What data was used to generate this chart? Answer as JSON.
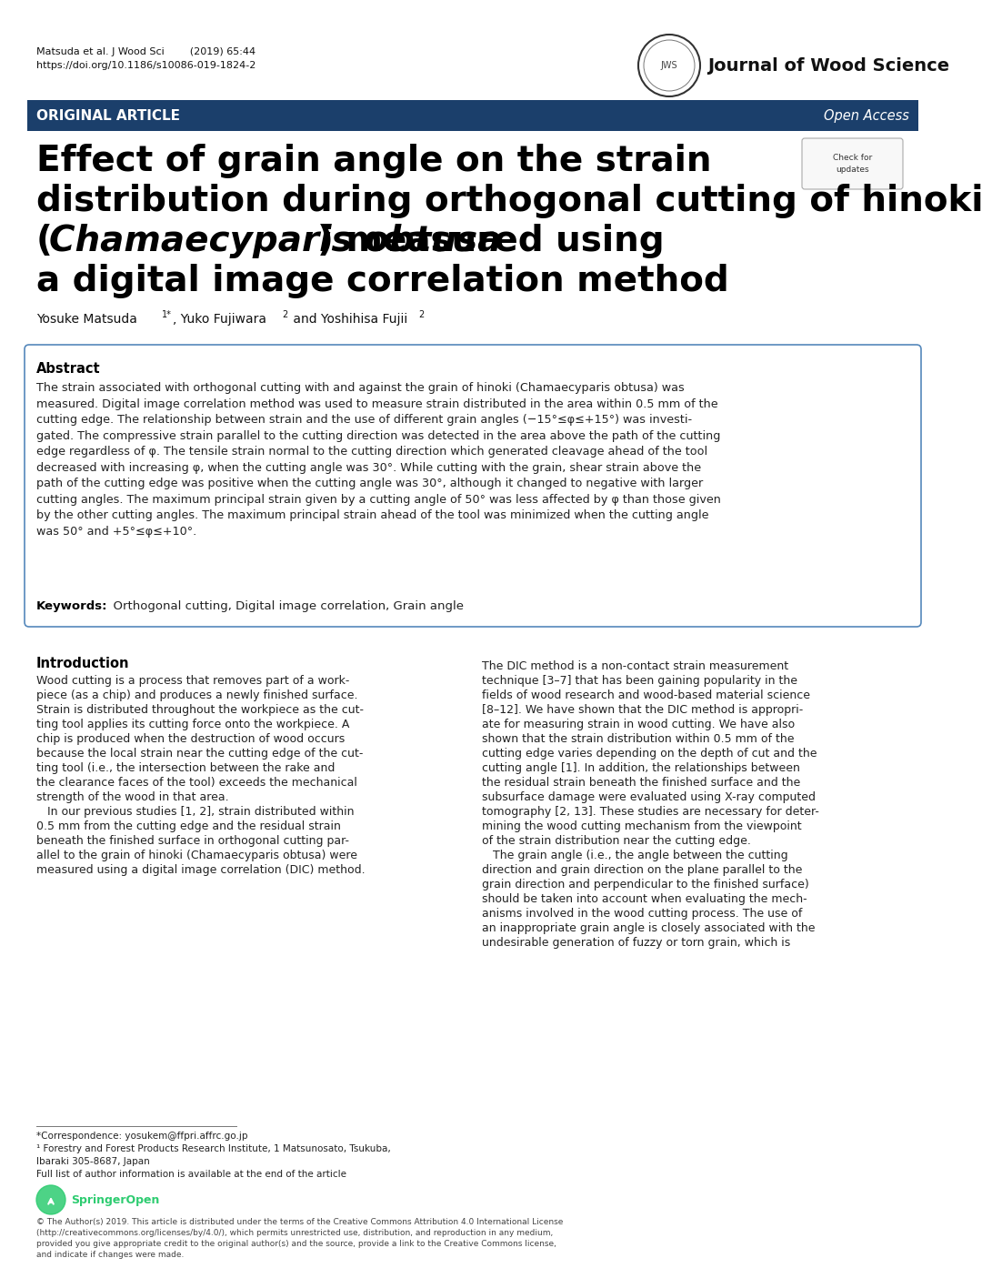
{
  "header_citation": "Matsuda et al. J Wood Sci        (2019) 65:44",
  "header_doi": "https://doi.org/10.1186/s10086-019-1824-2",
  "journal_name": "Journal of Wood Science",
  "banner_text": "ORIGINAL ARTICLE",
  "banner_right_text": "Open Access",
  "banner_color": "#1b3f6b",
  "title_line1": "Effect of grain angle on the strain",
  "title_line2": "distribution during orthogonal cutting of hinoki",
  "title_line3_pre": "(",
  "title_line3_italic": "Chamaecyparis obtusa",
  "title_line3_post": ") measured using",
  "title_line4": "a digital image correlation method",
  "authors": "Yosuke Matsuda",
  "authors_super1": "1*",
  "authors_mid": ", Yuko Fujiwara",
  "authors_super2": "2",
  "authors_end": " and Yoshihisa Fujii",
  "authors_super3": "2",
  "abstract_title": "Abstract",
  "abstract_text": "The strain associated with orthogonal cutting with and against the grain of hinoki (Chamaecyparis obtusa) was measured. Digital image correlation method was used to measure strain distributed in the area within 0.5 mm of the cutting edge. The relationship between strain and the use of different grain angles (−15°≤φ≤+15°) was investigated. The compressive strain parallel to the cutting direction was detected in the area above the path of the cutting edge regardless of φ. The tensile strain normal to the cutting direction which generated cleavage ahead of the tool decreased with increasing φ, when the cutting angle was 30°. While cutting with the grain, shear strain above the path of the cutting edge was positive when the cutting angle was 30°, although it changed to negative with larger cutting angles. The maximum principal strain given by a cutting angle of 50° was less affected by φ than those given by the other cutting angles. The maximum principal strain ahead of the tool was minimized when the cutting angle was 50° and +5°≤φ≤+10°.",
  "keywords_label": "Keywords:",
  "keywords_text": "  Orthogonal cutting, Digital image correlation, Grain angle",
  "intro_title": "Introduction",
  "intro_left_lines": [
    "Wood cutting is a process that removes part of a work-",
    "piece (as a chip) and produces a newly finished surface.",
    "Strain is distributed throughout the workpiece as the cut-",
    "ting tool applies its cutting force onto the workpiece. A",
    "chip is produced when the destruction of wood occurs",
    "because the local strain near the cutting edge of the cut-",
    "ting tool (i.e., the intersection between the rake and",
    "the clearance faces of the tool) exceeds the mechanical",
    "strength of the wood in that area.",
    "   In our previous studies [1, 2], strain distributed within",
    "0.5 mm from the cutting edge and the residual strain",
    "beneath the finished surface in orthogonal cutting par-",
    "allel to the grain of hinoki (Chamaecyparis obtusa) were",
    "measured using a digital image correlation (DIC) method."
  ],
  "intro_right_lines": [
    "The DIC method is a non-contact strain measurement",
    "technique [3–7] that has been gaining popularity in the",
    "fields of wood research and wood-based material science",
    "[8–12]. We have shown that the DIC method is appropri-",
    "ate for measuring strain in wood cutting. We have also",
    "shown that the strain distribution within 0.5 mm of the",
    "cutting edge varies depending on the depth of cut and the",
    "cutting angle [1]. In addition, the relationships between",
    "the residual strain beneath the finished surface and the",
    "subsurface damage were evaluated using X-ray computed",
    "tomography [2, 13]. These studies are necessary for deter-",
    "mining the wood cutting mechanism from the viewpoint",
    "of the strain distribution near the cutting edge.",
    "   The grain angle (i.e., the angle between the cutting",
    "direction and grain direction on the plane parallel to the",
    "grain direction and perpendicular to the finished surface)",
    "should be taken into account when evaluating the mech-",
    "anisms involved in the wood cutting process. The use of",
    "an inappropriate grain angle is closely associated with the",
    "undesirable generation of fuzzy or torn grain, which is"
  ],
  "footnote1": "*Correspondence: yosukem@ffpri.affrc.go.jp",
  "footnote2": "¹ Forestry and Forest Products Research Institute, 1 Matsunosato, Tsukuba,",
  "footnote3": "Ibaraki 305-8687, Japan",
  "footnote4": "Full list of author information is available at the end of the article",
  "license_text": "© The Author(s) 2019. This article is distributed under the terms of the Creative Commons Attribution 4.0 International License\n(http://creativecommons.org/licenses/by/4.0/), which permits unrestricted use, distribution, and reproduction in any medium,\nprovided you give appropriate credit to the original author(s) and the source, provide a link to the Creative Commons license,\nand indicate if changes were made.",
  "bg_color": "#ffffff",
  "text_color": "#000000",
  "abstract_border_color": "#5588bb",
  "link_color": "#1155cc"
}
